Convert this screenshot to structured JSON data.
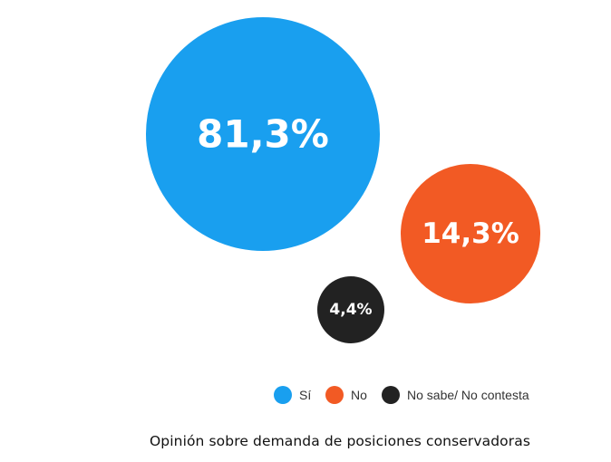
{
  "chart_data": {
    "type": "bubble",
    "title": "",
    "series": [
      {
        "name": "Sí",
        "value": 81.3,
        "label": "81,3%",
        "color": "#199fef"
      },
      {
        "name": "No",
        "value": 14.3,
        "label": "14,3%",
        "color": "#f25a24"
      },
      {
        "name": "No sabe/ No contesta",
        "value": 4.4,
        "label": "4,4%",
        "color": "#222222"
      }
    ],
    "legend": {
      "placement": "bottom",
      "items": [
        "Sí",
        "No",
        "No sabe/ No contesta"
      ]
    }
  },
  "caption": "Opinión sobre demanda de posiciones conservadoras"
}
